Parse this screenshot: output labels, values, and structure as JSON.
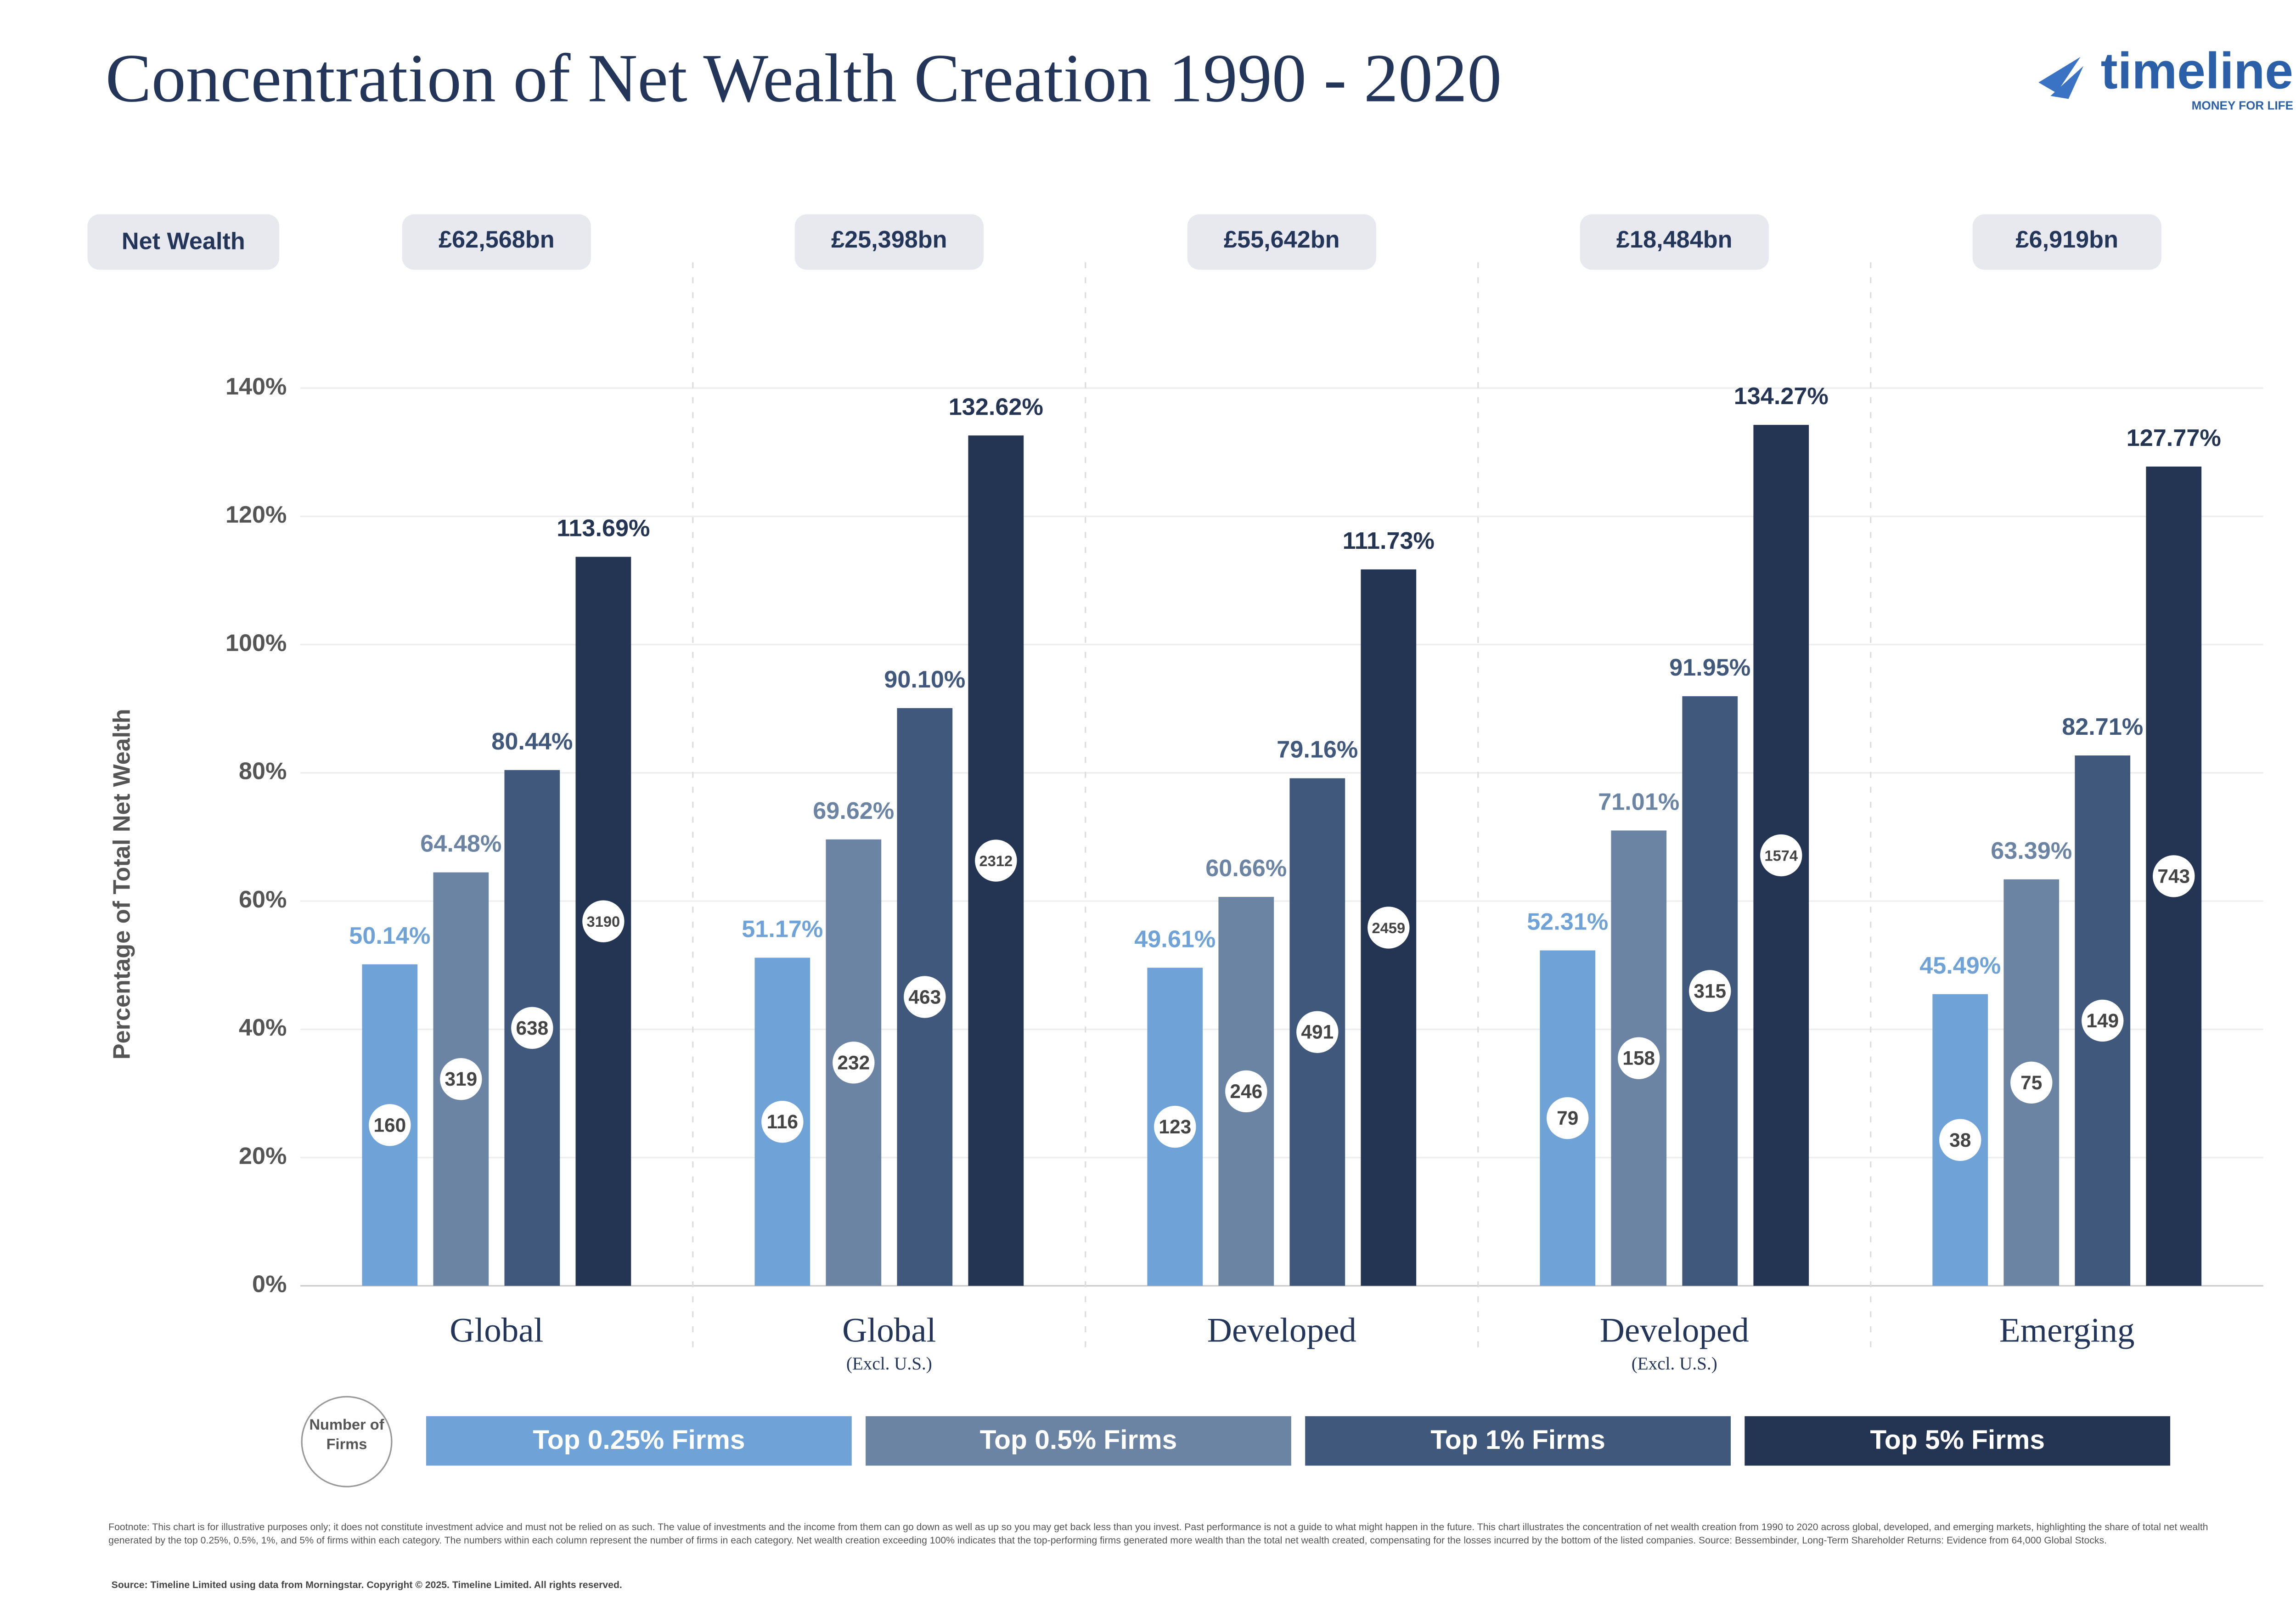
{
  "chart_data": {
    "type": "bar",
    "title": "Concentration of Net Wealth Creation 1990 - 2020",
    "logo": {
      "name": "timeline",
      "tagline": "MONEY FOR LIFE"
    },
    "net_wealth": {
      "label": "Net Wealth",
      "values": [
        "£62,568bn",
        "£25,398bn",
        "£55,642bn",
        "£18,484bn",
        "£6,919bn"
      ]
    },
    "y_label": "Percentage  of Total Net Wealth",
    "categories": [
      "Global",
      "Global",
      "Developed",
      "Developed",
      "Emerging"
    ],
    "subcategories": [
      null,
      "(Excl. U.S.)",
      null,
      "(Excl. U.S.)",
      null
    ],
    "ylim": [
      0,
      140
    ],
    "yticks": [
      {
        "value": 0,
        "label": "0%"
      },
      {
        "value": 20,
        "label": "20%"
      },
      {
        "value": 40,
        "label": "40%"
      },
      {
        "value": 60,
        "label": "60%"
      },
      {
        "value": 80,
        "label": "80%"
      },
      {
        "value": 100,
        "label": "100%"
      },
      {
        "value": 120,
        "label": "120%"
      },
      {
        "value": 140,
        "label": "140%"
      }
    ],
    "grid": true,
    "firms_label": "Number of Firms",
    "series": [
      {
        "name": "Top 0.25% Firms",
        "color": "#6fa3d8",
        "values": [
          50.14,
          51.17,
          49.61,
          52.31,
          45.49
        ],
        "value_labels": [
          "50.14%",
          "51.17%",
          "49.61%",
          "52.31%",
          "45.49%"
        ],
        "firms": [
          160,
          116,
          123,
          79,
          38
        ]
      },
      {
        "name": "Top 0.5% Firms",
        "color": "#6b84a3",
        "values": [
          64.48,
          69.62,
          60.66,
          71.01,
          63.39
        ],
        "value_labels": [
          "64.48%",
          "69.62%",
          "60.66%",
          "71.01%",
          "63.39%"
        ],
        "firms": [
          319,
          232,
          246,
          158,
          75
        ]
      },
      {
        "name": "Top 1% Firms",
        "color": "#3f587c",
        "values": [
          80.44,
          90.1,
          79.16,
          91.95,
          82.71
        ],
        "value_labels": [
          "80.44%",
          "90.10%",
          "79.16%",
          "91.95%",
          "82.71%"
        ],
        "firms": [
          638,
          463,
          491,
          315,
          149
        ]
      },
      {
        "name": "Top 5% Firms",
        "color": "#243554",
        "values": [
          113.69,
          132.62,
          111.73,
          134.27,
          127.77
        ],
        "value_labels": [
          "113.69%",
          "132.62%",
          "111.73%",
          "134.27%",
          "127.77%"
        ],
        "firms": [
          3190,
          2312,
          2459,
          1574,
          743
        ]
      }
    ],
    "footnote": "Footnote: This chart is for illustrative purposes only; it does not constitute investment advice and must not be relied on as such. The value of investments and the income from them can go down as well as up so you may get back less than you invest. Past performance is not a guide to what might happen in the future.  This chart illustrates the concentration of net wealth creation from 1990 to 2020 across global, developed, and emerging markets, highlighting the share of total net wealth generated by the top 0.25%, 0.5%, 1%, and 5% of firms within each category. The numbers within each column represent the number of firms in each category. Net wealth creation exceeding 100% indicates that the top-performing firms generated more wealth than the total net wealth created, compensating for the losses incurred by the bottom of the listed companies. Source: Bessembinder, Long-Term Shareholder Returns: Evidence from 64,000 Global Stocks.",
    "source": "Source: Timeline Limited using data from Morningstar. Copyright © 2025. Timeline Limited. All rights reserved."
  }
}
